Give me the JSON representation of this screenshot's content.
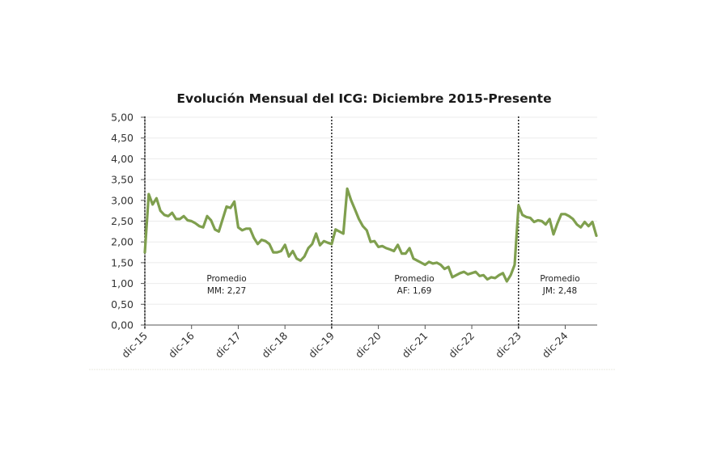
{
  "chart_data": {
    "type": "line",
    "title": "Evolución Mensual del ICG: Diciembre 2015-Presente",
    "xlabel": "",
    "ylabel": "",
    "ylim": [
      0,
      5
    ],
    "yticks": [
      "0,00",
      "0,50",
      "1,00",
      "1,50",
      "2,00",
      "2,50",
      "3,00",
      "3,50",
      "4,00",
      "4,50",
      "5,00"
    ],
    "ytick_values": [
      0,
      0.5,
      1,
      1.5,
      2,
      2.5,
      3,
      3.5,
      4,
      4.5,
      5
    ],
    "xticks": [
      "dic-15",
      "dic-16",
      "dic-17",
      "dic-18",
      "dic-19",
      "dic-20",
      "dic-21",
      "dic-22",
      "dic-23",
      "dic-24"
    ],
    "xtick_month_index": [
      0,
      12,
      24,
      36,
      48,
      60,
      72,
      84,
      96,
      108
    ],
    "grid": true,
    "line_color": "#7f9f4e",
    "series": [
      {
        "name": "ICG",
        "start": "dic-15",
        "frequency": "monthly",
        "values": [
          1.75,
          3.15,
          2.9,
          3.05,
          2.75,
          2.65,
          2.62,
          2.7,
          2.55,
          2.55,
          2.62,
          2.52,
          2.5,
          2.45,
          2.38,
          2.35,
          2.62,
          2.52,
          2.3,
          2.25,
          2.55,
          2.85,
          2.82,
          2.97,
          2.35,
          2.28,
          2.32,
          2.32,
          2.1,
          1.95,
          2.05,
          2.02,
          1.95,
          1.75,
          1.75,
          1.78,
          1.93,
          1.65,
          1.78,
          1.6,
          1.55,
          1.65,
          1.85,
          1.95,
          2.2,
          1.92,
          2.02,
          1.98,
          1.95,
          2.3,
          2.25,
          2.2,
          3.28,
          3.0,
          2.78,
          2.55,
          2.38,
          2.28,
          2.0,
          2.02,
          1.88,
          1.9,
          1.85,
          1.82,
          1.78,
          1.93,
          1.72,
          1.72,
          1.85,
          1.6,
          1.55,
          1.5,
          1.45,
          1.52,
          1.48,
          1.5,
          1.45,
          1.35,
          1.4,
          1.15,
          1.2,
          1.25,
          1.28,
          1.22,
          1.25,
          1.28,
          1.18,
          1.2,
          1.1,
          1.15,
          1.13,
          1.2,
          1.25,
          1.05,
          1.2,
          1.45,
          2.88,
          2.65,
          2.6,
          2.58,
          2.48,
          2.52,
          2.5,
          2.42,
          2.55,
          2.18,
          2.45,
          2.67,
          2.67,
          2.62,
          2.55,
          2.42,
          2.35,
          2.48,
          2.38,
          2.48,
          2.15
        ]
      }
    ],
    "vertical_markers": [
      {
        "label": "dic-15",
        "month_index": 0,
        "style": "dotted"
      },
      {
        "label": "dic-19",
        "month_index": 48,
        "style": "dotted"
      },
      {
        "label": "dic-23",
        "month_index": 96,
        "style": "dotted"
      }
    ],
    "annotations": [
      {
        "line1": "Promedio",
        "line2": "MM: 2,27",
        "period": "dic-15 a dic-19",
        "value": 2.27
      },
      {
        "line1": "Promedio",
        "line2": "AF: 1,69",
        "period": "dic-19 a dic-23",
        "value": 1.69
      },
      {
        "line1": "Promedio",
        "line2": "JM: 2,48",
        "period": "dic-23 - Presente",
        "value": 2.48
      }
    ],
    "legend": "none"
  }
}
